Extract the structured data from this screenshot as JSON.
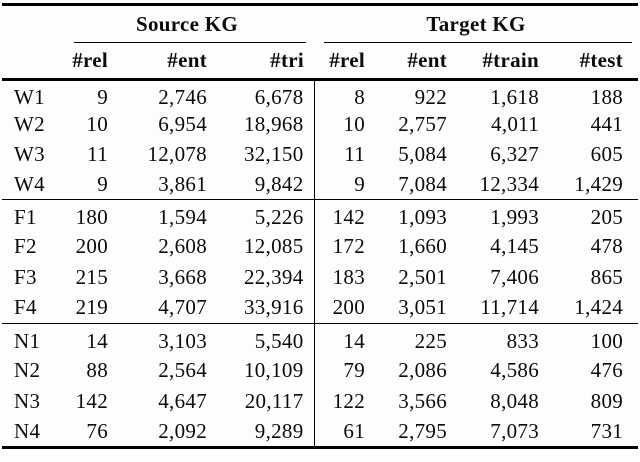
{
  "page": {
    "background": "#fdfdfd",
    "text_color": "#0b0b0b",
    "rule_color": "#000000"
  },
  "table": {
    "groups": [
      {
        "label": "Source KG",
        "columns": [
          "#rel",
          "#ent",
          "#tri"
        ]
      },
      {
        "label": "Target KG",
        "columns": [
          "#rel",
          "#ent",
          "#train",
          "#test"
        ]
      }
    ],
    "blocks": [
      {
        "rows": [
          {
            "label": "W1",
            "source": [
              "9",
              "2,746",
              "6,678"
            ],
            "target": [
              "8",
              "922",
              "1,618",
              "188"
            ]
          },
          {
            "label": "W2",
            "source": [
              "10",
              "6,954",
              "18,968"
            ],
            "target": [
              "10",
              "2,757",
              "4,011",
              "441"
            ]
          },
          {
            "label": "W3",
            "source": [
              "11",
              "12,078",
              "32,150"
            ],
            "target": [
              "11",
              "5,084",
              "6,327",
              "605"
            ]
          },
          {
            "label": "W4",
            "source": [
              "9",
              "3,861",
              "9,842"
            ],
            "target": [
              "9",
              "7,084",
              "12,334",
              "1,429"
            ]
          }
        ]
      },
      {
        "rows": [
          {
            "label": "F1",
            "source": [
              "180",
              "1,594",
              "5,226"
            ],
            "target": [
              "142",
              "1,093",
              "1,993",
              "205"
            ]
          },
          {
            "label": "F2",
            "source": [
              "200",
              "2,608",
              "12,085"
            ],
            "target": [
              "172",
              "1,660",
              "4,145",
              "478"
            ]
          },
          {
            "label": "F3",
            "source": [
              "215",
              "3,668",
              "22,394"
            ],
            "target": [
              "183",
              "2,501",
              "7,406",
              "865"
            ]
          },
          {
            "label": "F4",
            "source": [
              "219",
              "4,707",
              "33,916"
            ],
            "target": [
              "200",
              "3,051",
              "11,714",
              "1,424"
            ]
          }
        ]
      },
      {
        "rows": [
          {
            "label": "N1",
            "source": [
              "14",
              "3,103",
              "5,540"
            ],
            "target": [
              "14",
              "225",
              "833",
              "100"
            ]
          },
          {
            "label": "N2",
            "source": [
              "88",
              "2,564",
              "10,109"
            ],
            "target": [
              "79",
              "2,086",
              "4,586",
              "476"
            ]
          },
          {
            "label": "N3",
            "source": [
              "142",
              "4,647",
              "20,117"
            ],
            "target": [
              "122",
              "3,566",
              "8,048",
              "809"
            ]
          },
          {
            "label": "N4",
            "source": [
              "76",
              "2,092",
              "9,289"
            ],
            "target": [
              "61",
              "2,795",
              "7,073",
              "731"
            ]
          }
        ]
      }
    ]
  }
}
